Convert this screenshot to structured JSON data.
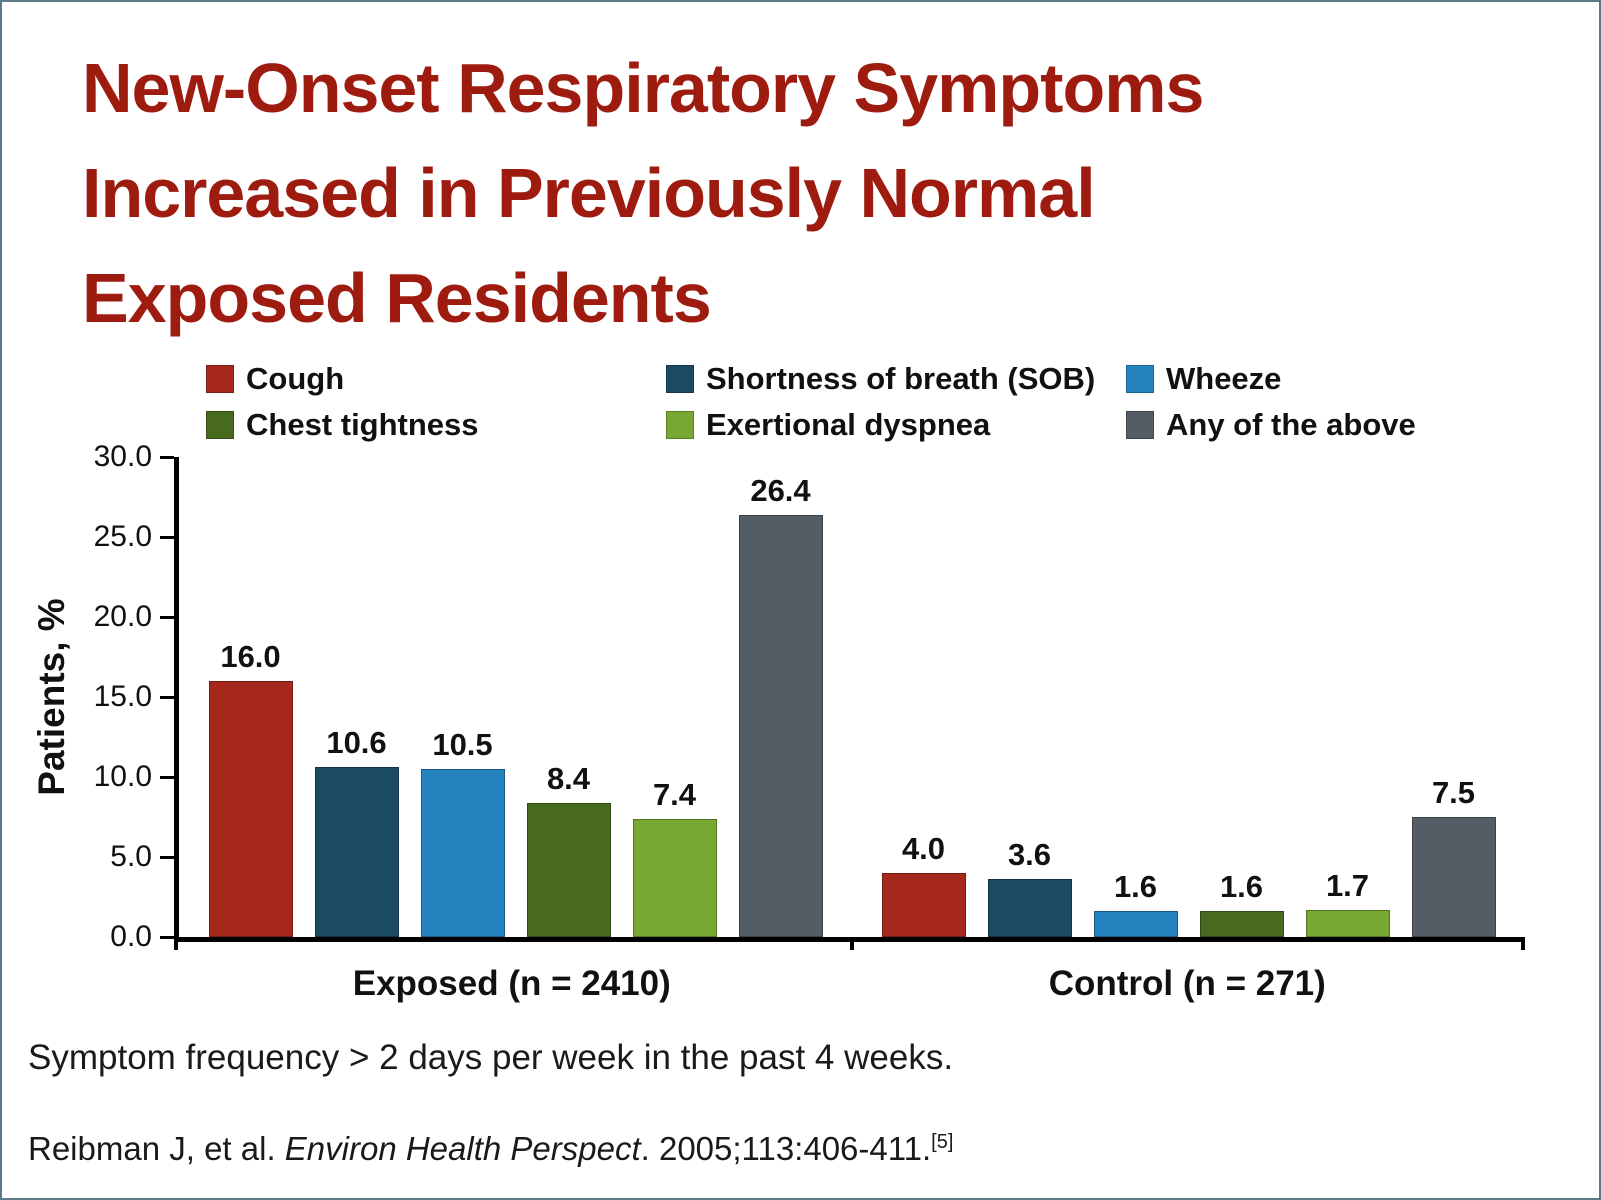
{
  "title_block": {
    "title": "New-Onset Respiratory Symptoms Increased in Previously Normal Exposed Residents",
    "title_lines": [
      "New-Onset Respiratory Symptoms",
      "Increased in Previously Normal",
      "Exposed Residents"
    ],
    "title_color": "#9E1B10"
  },
  "chart_data": {
    "type": "bar",
    "title": "New-Onset Respiratory Symptoms Increased in Previously Normal Exposed Residents",
    "ylabel": "Patients, %",
    "xlabel": "",
    "ylim": [
      0,
      30
    ],
    "ytick_step": 5,
    "grid": false,
    "legend_position": "top",
    "categories": [
      "Exposed (n = 2410)",
      "Control (n = 271)"
    ],
    "series": [
      {
        "name": "Cough",
        "color": "#A5281B",
        "values": [
          16.0,
          4.0
        ]
      },
      {
        "name": "Shortness of breath (SOB)",
        "color": "#1B4A63",
        "values": [
          10.6,
          3.6
        ]
      },
      {
        "name": "Wheeze",
        "color": "#2583C0",
        "values": [
          10.5,
          1.6
        ]
      },
      {
        "name": "Chest tightness",
        "color": "#486A1F",
        "values": [
          8.4,
          1.6
        ]
      },
      {
        "name": "Exertional dyspnea",
        "color": "#77A833",
        "values": [
          7.4,
          1.7
        ]
      },
      {
        "name": "Any of the above",
        "color": "#545D66",
        "values": [
          26.4,
          7.5
        ]
      }
    ]
  },
  "notes": {
    "footnote": "Symptom frequency > 2 days per week in the past 4 weeks.",
    "citation": {
      "prefix": "Reibman J, et al. ",
      "journal": "Environ Health Perspect",
      "suffix": ". 2005;113:406-411.",
      "ref": "[5]"
    }
  }
}
